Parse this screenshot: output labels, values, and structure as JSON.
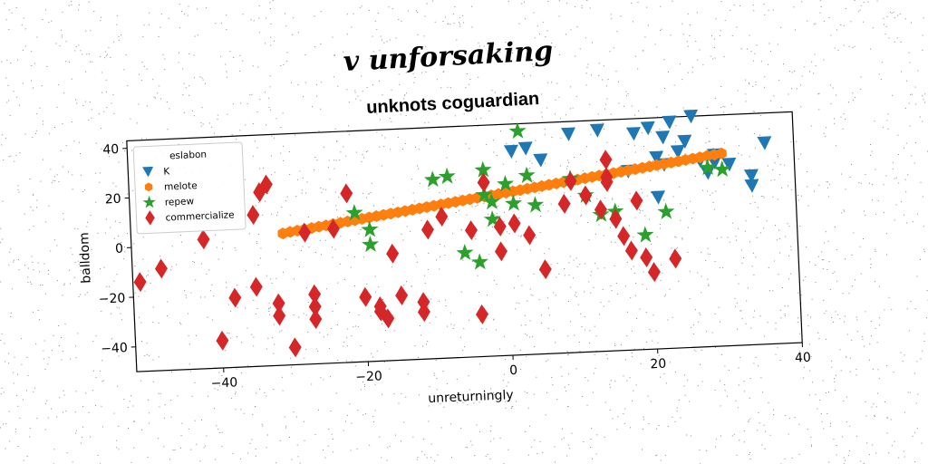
{
  "chart_data": {
    "type": "scatter",
    "suptitle": "v unforsaking",
    "title": "unknots coguardian",
    "xlabel": "unreturningly",
    "ylabel": "balldom",
    "xlim": [
      -52,
      40
    ],
    "ylim": [
      -50,
      43
    ],
    "xticks": [
      -40,
      -20,
      0,
      20,
      40
    ],
    "yticks": [
      -40,
      -20,
      0,
      20,
      40
    ],
    "xtick_labels": [
      "−40",
      "−20",
      "0",
      "20",
      "40"
    ],
    "ytick_labels": [
      "−40",
      "−20",
      "0",
      "20",
      "40"
    ],
    "grid": false,
    "legend_title": "eslabon",
    "legend_position": "top-left",
    "series": [
      {
        "name": "K",
        "color": "#1f77b4",
        "marker": "triangle-down",
        "points": [
          [
            1,
            32
          ],
          [
            3,
            33
          ],
          [
            5,
            28
          ],
          [
            9,
            38
          ],
          [
            13,
            39
          ],
          [
            17,
            22
          ],
          [
            18,
            37
          ],
          [
            20,
            39
          ],
          [
            21,
            11
          ],
          [
            21,
            27
          ],
          [
            22,
            24
          ],
          [
            22,
            35
          ],
          [
            23,
            41
          ],
          [
            24,
            29
          ],
          [
            25,
            33
          ],
          [
            26,
            43
          ],
          [
            27,
            25
          ],
          [
            28,
            20
          ],
          [
            29,
            24
          ],
          [
            29,
            27
          ],
          [
            31,
            23
          ],
          [
            34,
            18
          ],
          [
            34,
            14
          ],
          [
            36,
            31
          ]
        ]
      },
      {
        "name": "melote",
        "color": "#ff7f0e",
        "marker": "hexagon",
        "points": [
          [
            -31,
            3
          ],
          [
            -30,
            3.5
          ],
          [
            -29,
            3.9
          ],
          [
            -28,
            4.3
          ],
          [
            -27,
            4.7
          ],
          [
            -26,
            5.1
          ],
          [
            -25,
            5.5
          ],
          [
            -24,
            5.9
          ],
          [
            -23,
            6.3
          ],
          [
            -22,
            6.7
          ],
          [
            -21,
            7.1
          ],
          [
            -20,
            7.5
          ],
          [
            -19,
            7.9
          ],
          [
            -18,
            8.3
          ],
          [
            -17,
            8.7
          ],
          [
            -16,
            9.1
          ],
          [
            -15,
            9.5
          ],
          [
            -14,
            9.9
          ],
          [
            -13,
            10.3
          ],
          [
            -12,
            10.7
          ],
          [
            -11,
            11.1
          ],
          [
            -10,
            11.5
          ],
          [
            -9,
            11.9
          ],
          [
            -8,
            12.3
          ],
          [
            -7,
            12.7
          ],
          [
            -6,
            13.1
          ],
          [
            -5,
            13.5
          ],
          [
            -4,
            13.9
          ],
          [
            -3,
            14.3
          ],
          [
            -2,
            14.7
          ],
          [
            -1,
            15.1
          ],
          [
            0,
            15.5
          ],
          [
            1,
            15.9
          ],
          [
            2,
            16.3
          ],
          [
            3,
            16.7
          ],
          [
            4,
            17.1
          ],
          [
            5,
            17.5
          ],
          [
            6,
            17.9
          ],
          [
            7,
            18.3
          ],
          [
            8,
            18.7
          ],
          [
            9,
            19.1
          ],
          [
            10,
            19.5
          ],
          [
            11,
            19.9
          ],
          [
            12,
            20.3
          ],
          [
            13,
            20.7
          ],
          [
            14,
            21.1
          ],
          [
            15,
            21.5
          ],
          [
            16,
            21.9
          ],
          [
            17,
            22.3
          ],
          [
            18,
            22.7
          ],
          [
            19,
            23.1
          ],
          [
            20,
            23.5
          ],
          [
            21,
            23.9
          ],
          [
            22,
            24.3
          ],
          [
            23,
            24.7
          ],
          [
            24,
            25.1
          ],
          [
            25,
            25.5
          ],
          [
            26,
            25.9
          ],
          [
            27,
            26.3
          ],
          [
            28,
            26.7
          ],
          [
            29,
            27.1
          ],
          [
            30,
            27.5
          ]
        ]
      },
      {
        "name": "repew",
        "color": "#2ca02c",
        "marker": "star",
        "points": [
          [
            -21,
            10
          ],
          [
            -19,
            3
          ],
          [
            -19,
            -3
          ],
          [
            -8,
            23
          ],
          [
            -6,
            -8
          ],
          [
            -4,
            -12
          ],
          [
            -3,
            15
          ],
          [
            -2,
            5
          ],
          [
            -2,
            12
          ],
          [
            0,
            19
          ],
          [
            1,
            11
          ],
          [
            2,
            40
          ],
          [
            3,
            22
          ],
          [
            4,
            10
          ],
          [
            9,
            20
          ],
          [
            11,
            13
          ],
          [
            13,
            5
          ],
          [
            15,
            6
          ],
          [
            19,
            -4
          ],
          [
            22,
            5
          ],
          [
            28,
            22
          ],
          [
            -10,
            22
          ],
          [
            30,
            21
          ],
          [
            -3,
            25
          ]
        ]
      },
      {
        "name": "commercialize",
        "color": "#d62728",
        "marker": "diamond",
        "points": [
          [
            -51,
            -14
          ],
          [
            -48,
            -9
          ],
          [
            -42,
            2
          ],
          [
            -40,
            -39
          ],
          [
            -38,
            -22
          ],
          [
            -35,
            11
          ],
          [
            -35,
            -18
          ],
          [
            -34,
            20
          ],
          [
            -33,
            23
          ],
          [
            -32,
            -25
          ],
          [
            -32,
            -30
          ],
          [
            -30,
            -43
          ],
          [
            -28,
            3
          ],
          [
            -27,
            -22
          ],
          [
            -27,
            -27
          ],
          [
            -27,
            -32
          ],
          [
            -24,
            4
          ],
          [
            -22,
            18
          ],
          [
            -20,
            -24
          ],
          [
            -18,
            -28
          ],
          [
            -18,
            -30
          ],
          [
            -17,
            -33
          ],
          [
            -16,
            -7
          ],
          [
            -15,
            -24
          ],
          [
            -12,
            -27
          ],
          [
            -12,
            -31
          ],
          [
            -11,
            2
          ],
          [
            -9,
            7
          ],
          [
            -5,
            1
          ],
          [
            -4,
            -33
          ],
          [
            -3,
            20
          ],
          [
            -1,
            -8
          ],
          [
            -1,
            2
          ],
          [
            1,
            3
          ],
          [
            3,
            -2
          ],
          [
            5,
            -16
          ],
          [
            8,
            10
          ],
          [
            9,
            19
          ],
          [
            11,
            13
          ],
          [
            13,
            7
          ],
          [
            14,
            18
          ],
          [
            14,
            27
          ],
          [
            14,
            20
          ],
          [
            15,
            3
          ],
          [
            16,
            -4
          ],
          [
            18,
            10
          ],
          [
            19,
            -13
          ],
          [
            20,
            -19
          ],
          [
            23,
            -14
          ],
          [
            17,
            -10
          ]
        ]
      }
    ]
  }
}
